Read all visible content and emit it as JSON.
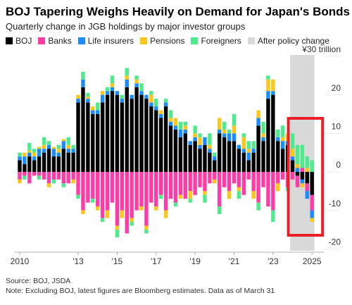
{
  "chart_data": {
    "type": "stacked_bar",
    "title": "BOJ Tapering Weighs Heavily on Demand for Japan's Bonds",
    "subtitle": "Quarterly change in JGB holdings by major investor groups",
    "categories": [
      "2010",
      null,
      null,
      null,
      null,
      null,
      null,
      null,
      null,
      null,
      null,
      null,
      "'13",
      null,
      null,
      null,
      null,
      null,
      null,
      null,
      "'15",
      null,
      null,
      null,
      null,
      null,
      null,
      null,
      "'17",
      null,
      null,
      null,
      null,
      null,
      null,
      null,
      "'19",
      null,
      null,
      null,
      null,
      null,
      null,
      null,
      "'21",
      null,
      null,
      null,
      null,
      null,
      null,
      null,
      "'23",
      null,
      null,
      null,
      null,
      null,
      null,
      null,
      "2025"
    ],
    "series": [
      {
        "name": "BOJ",
        "color": "#000000",
        "values": [
          3,
          2,
          4,
          3,
          4,
          5,
          6,
          4,
          4,
          6,
          5,
          5,
          18,
          22,
          18,
          15,
          15,
          18,
          20,
          21,
          20,
          18,
          22,
          19,
          22,
          20,
          19,
          17,
          16,
          14,
          17,
          12,
          11,
          9,
          10,
          7,
          8,
          6,
          7,
          5,
          3,
          10,
          9,
          8,
          8,
          6,
          5,
          3,
          5,
          12,
          8,
          19,
          20,
          8,
          6,
          7,
          3,
          -1,
          -2,
          -3,
          -6
        ]
      },
      {
        "name": "Banks",
        "color": "#ff3ca6",
        "values": [
          -2,
          -1,
          -3,
          -1,
          -1,
          -2,
          -3,
          -2,
          -2,
          -3,
          -3,
          -2,
          -6,
          -10,
          -8,
          -7,
          -9,
          -12,
          -10,
          -8,
          -14,
          -10,
          -16,
          -12,
          -10,
          -9,
          -14,
          -8,
          -9,
          -6,
          -10,
          -7,
          -8,
          -6,
          -7,
          -5,
          -6,
          -4,
          -5,
          -3,
          -2,
          -9,
          -4,
          -5,
          -3,
          -4,
          -6,
          -2,
          -5,
          -8,
          -4,
          -9,
          -10,
          -3,
          -2,
          -4,
          -2,
          -3,
          1,
          -2,
          -4
        ]
      },
      {
        "name": "Life insurers",
        "color": "#1a8cff",
        "values": [
          1,
          2,
          1,
          1,
          2,
          1,
          1,
          2,
          1,
          2,
          1,
          1,
          1,
          2,
          1,
          1,
          1,
          2,
          1,
          1,
          1,
          1,
          2,
          1,
          1,
          1,
          1,
          1,
          1,
          1,
          1,
          1,
          1,
          2,
          1,
          1,
          1,
          1,
          2,
          1,
          1,
          1,
          1,
          2,
          2,
          1,
          1,
          2,
          1,
          2,
          1,
          2,
          1,
          1,
          2,
          1,
          1,
          1,
          -1,
          -2,
          -2
        ]
      },
      {
        "name": "Pensions",
        "color": "#ffc61a",
        "values": [
          -1,
          1,
          0.5,
          1,
          0.5,
          1,
          -1,
          0.5,
          1,
          0.5,
          1,
          -1,
          1,
          -1,
          0.5,
          1,
          -1,
          1,
          -2,
          1,
          -1,
          -2,
          1,
          -1,
          1,
          -1,
          -1,
          2,
          -1,
          1,
          -2,
          1,
          2,
          -1,
          1,
          -2,
          1,
          2,
          -1,
          1,
          -1,
          3,
          1,
          -2,
          2,
          -1,
          3,
          1,
          -2,
          2,
          1,
          3,
          3,
          -2,
          1,
          2,
          2,
          1,
          -1,
          1,
          -1
        ]
      },
      {
        "name": "Foreigners",
        "color": "#4deb8c",
        "values": [
          1,
          -1,
          2,
          1,
          -1,
          2,
          1,
          -1,
          1,
          -1,
          2,
          1,
          -1,
          2,
          1,
          -1,
          2,
          -1,
          1,
          2,
          -2,
          1,
          2,
          -1,
          1,
          2,
          -1,
          1,
          2,
          -1,
          1,
          2,
          -1,
          2,
          1,
          -1,
          2,
          1,
          -2,
          3,
          1,
          -2,
          2,
          1,
          3,
          -2,
          1,
          2,
          2,
          -2,
          3,
          1,
          -3,
          2,
          3,
          -1,
          4,
          5,
          6,
          3,
          3
        ]
      }
    ],
    "shade_label": "After policy change",
    "shade_color": "#d9d9d9",
    "ylim": [
      -20.5,
      30
    ],
    "yticks": [
      {
        "value": 30,
        "label": "¥30 trillion"
      },
      20,
      10,
      0,
      -10,
      -20
    ],
    "grid": false,
    "source": "Source: BOJ, JSDA",
    "note": "Note: Excluding BOJ, latest figures are Bloomberg estimates. Data as of March 31"
  }
}
